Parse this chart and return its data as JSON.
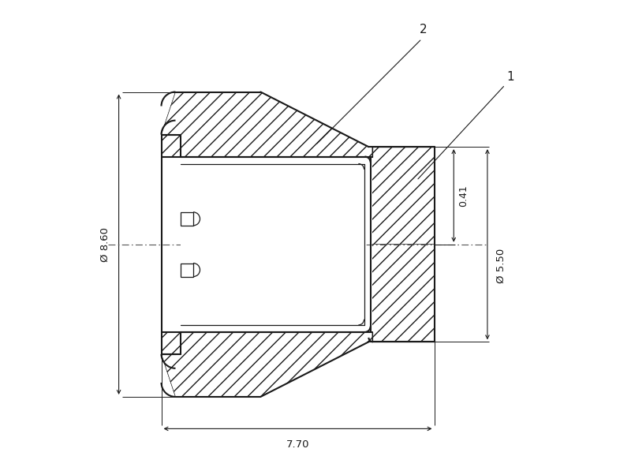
{
  "bg_color": "#ffffff",
  "line_color": "#1a1a1a",
  "figsize": [
    8.0,
    5.97
  ],
  "dpi": 100,
  "dim_860": "Ø 8.60",
  "dim_550": "Ø 5.50",
  "dim_041": "0.41",
  "dim_770": "7.70",
  "label_1": "1",
  "label_2": "2"
}
